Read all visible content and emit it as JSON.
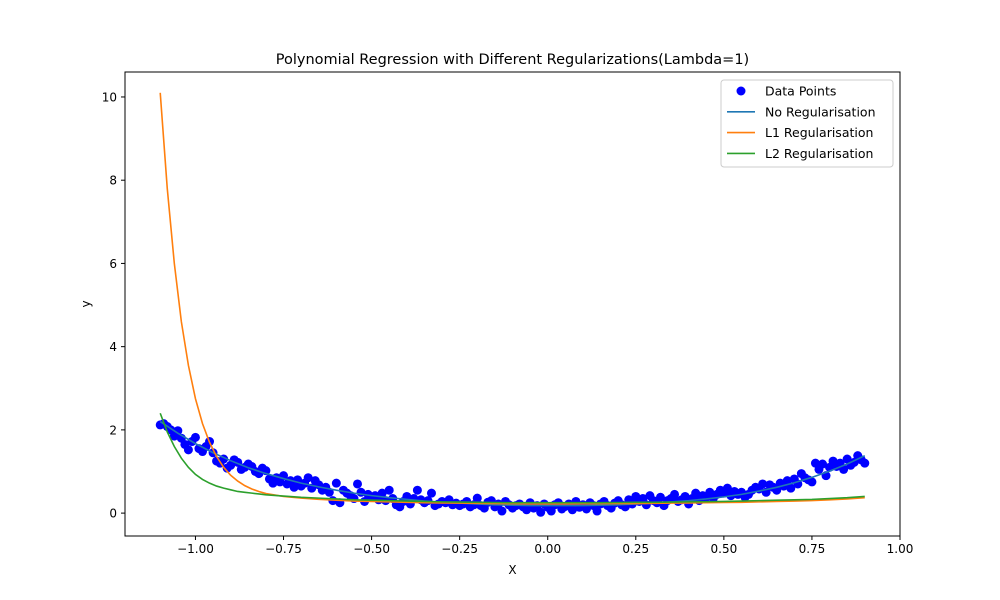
{
  "chart_data": {
    "type": "scatter",
    "title": "Polynomial Regression with Different Regularizations(Lambda=1)",
    "xlabel": "X",
    "ylabel": "y",
    "xlim": [
      -1.2,
      1.0
    ],
    "ylim": [
      -0.55,
      10.6
    ],
    "xticks": [
      -1.0,
      -0.75,
      -0.5,
      -0.25,
      0.0,
      0.25,
      0.5,
      0.75,
      1.0
    ],
    "xtick_labels": [
      "−1.00",
      "−0.75",
      "−0.50",
      "−0.25",
      "0.00",
      "0.25",
      "0.50",
      "0.75",
      "1.00"
    ],
    "yticks": [
      0,
      2,
      4,
      6,
      8,
      10
    ],
    "ytick_labels": [
      "0",
      "2",
      "4",
      "6",
      "8",
      "10"
    ],
    "grid": false,
    "legend_position": "top-right",
    "series": [
      {
        "name": "Data Points",
        "type": "scatter",
        "color": "#0000ff",
        "x": [
          -1.1,
          -1.09,
          -1.08,
          -1.07,
          -1.06,
          -1.05,
          -1.04,
          -1.03,
          -1.02,
          -1.01,
          -1.0,
          -0.99,
          -0.98,
          -0.97,
          -0.96,
          -0.95,
          -0.94,
          -0.93,
          -0.92,
          -0.91,
          -0.9,
          -0.89,
          -0.88,
          -0.87,
          -0.86,
          -0.85,
          -0.84,
          -0.83,
          -0.82,
          -0.81,
          -0.8,
          -0.79,
          -0.78,
          -0.77,
          -0.76,
          -0.75,
          -0.74,
          -0.73,
          -0.72,
          -0.71,
          -0.7,
          -0.69,
          -0.68,
          -0.67,
          -0.66,
          -0.65,
          -0.64,
          -0.63,
          -0.62,
          -0.61,
          -0.6,
          -0.59,
          -0.58,
          -0.57,
          -0.56,
          -0.55,
          -0.54,
          -0.53,
          -0.52,
          -0.51,
          -0.5,
          -0.49,
          -0.48,
          -0.47,
          -0.46,
          -0.45,
          -0.44,
          -0.43,
          -0.42,
          -0.41,
          -0.4,
          -0.39,
          -0.38,
          -0.37,
          -0.36,
          -0.35,
          -0.34,
          -0.33,
          -0.32,
          -0.31,
          -0.3,
          -0.29,
          -0.28,
          -0.27,
          -0.26,
          -0.25,
          -0.24,
          -0.23,
          -0.22,
          -0.21,
          -0.2,
          -0.19,
          -0.18,
          -0.17,
          -0.16,
          -0.15,
          -0.14,
          -0.13,
          -0.12,
          -0.11,
          -0.1,
          -0.09,
          -0.08,
          -0.07,
          -0.06,
          -0.05,
          -0.04,
          -0.03,
          -0.02,
          -0.01,
          0.0,
          0.01,
          0.02,
          0.03,
          0.04,
          0.05,
          0.06,
          0.07,
          0.08,
          0.09,
          0.1,
          0.11,
          0.12,
          0.13,
          0.14,
          0.15,
          0.16,
          0.17,
          0.18,
          0.19,
          0.2,
          0.21,
          0.22,
          0.23,
          0.24,
          0.25,
          0.26,
          0.27,
          0.28,
          0.29,
          0.3,
          0.31,
          0.32,
          0.33,
          0.34,
          0.35,
          0.36,
          0.37,
          0.38,
          0.39,
          0.4,
          0.41,
          0.42,
          0.43,
          0.44,
          0.45,
          0.46,
          0.47,
          0.48,
          0.49,
          0.5,
          0.51,
          0.52,
          0.53,
          0.54,
          0.55,
          0.56,
          0.57,
          0.58,
          0.59,
          0.6,
          0.61,
          0.62,
          0.63,
          0.64,
          0.65,
          0.66,
          0.67,
          0.68,
          0.69,
          0.7,
          0.71,
          0.72,
          0.73,
          0.74,
          0.75,
          0.76,
          0.77,
          0.78,
          0.79,
          0.8,
          0.81,
          0.82,
          0.83,
          0.84,
          0.85,
          0.86,
          0.87,
          0.88,
          0.89,
          0.9
        ],
        "y": [
          2.12,
          2.15,
          2.08,
          2.0,
          1.85,
          1.98,
          1.8,
          1.65,
          1.52,
          1.72,
          1.82,
          1.55,
          1.48,
          1.6,
          1.72,
          1.45,
          1.25,
          1.2,
          1.3,
          1.08,
          1.15,
          1.28,
          1.22,
          1.05,
          1.1,
          1.18,
          1.12,
          1.0,
          0.95,
          1.08,
          1.02,
          0.82,
          0.72,
          0.85,
          0.75,
          0.9,
          0.7,
          0.78,
          0.62,
          0.8,
          0.65,
          0.72,
          0.85,
          0.6,
          0.78,
          0.68,
          0.55,
          0.62,
          0.5,
          0.3,
          0.72,
          0.25,
          0.55,
          0.48,
          0.42,
          0.35,
          0.7,
          0.5,
          0.28,
          0.45,
          0.38,
          0.42,
          0.32,
          0.48,
          0.3,
          0.55,
          0.35,
          0.2,
          0.15,
          0.28,
          0.4,
          0.22,
          0.35,
          0.55,
          0.32,
          0.25,
          0.3,
          0.48,
          0.18,
          0.22,
          0.28,
          0.25,
          0.32,
          0.2,
          0.24,
          0.18,
          0.22,
          0.28,
          0.15,
          0.2,
          0.36,
          0.18,
          0.12,
          0.26,
          0.3,
          0.15,
          0.22,
          0.05,
          0.28,
          0.2,
          0.12,
          0.18,
          0.22,
          0.15,
          0.08,
          0.25,
          0.12,
          0.18,
          0.02,
          0.22,
          0.14,
          0.05,
          0.2,
          0.25,
          0.1,
          0.16,
          0.22,
          0.08,
          0.28,
          0.14,
          0.2,
          0.1,
          0.25,
          0.18,
          0.05,
          0.22,
          0.28,
          0.18,
          0.12,
          0.24,
          0.3,
          0.2,
          0.15,
          0.32,
          0.22,
          0.4,
          0.28,
          0.35,
          0.2,
          0.42,
          0.3,
          0.25,
          0.38,
          0.18,
          0.3,
          0.35,
          0.45,
          0.28,
          0.32,
          0.4,
          0.22,
          0.35,
          0.48,
          0.3,
          0.42,
          0.38,
          0.5,
          0.35,
          0.45,
          0.55,
          0.48,
          0.6,
          0.42,
          0.52,
          0.45,
          0.5,
          0.38,
          0.45,
          0.55,
          0.62,
          0.58,
          0.7,
          0.5,
          0.68,
          0.62,
          0.55,
          0.72,
          0.65,
          0.78,
          0.6,
          0.82,
          0.7,
          0.95,
          0.85,
          0.8,
          0.75,
          1.2,
          1.05,
          1.18,
          0.9,
          1.1,
          1.25,
          1.12,
          1.2,
          1.05,
          1.3,
          1.15,
          1.22,
          1.38,
          1.28,
          1.2
        ]
      },
      {
        "name": "No Regularisation",
        "type": "line",
        "color": "#1f77b4",
        "x": [
          -1.1,
          -1.05,
          -1.0,
          -0.95,
          -0.9,
          -0.85,
          -0.8,
          -0.75,
          -0.7,
          -0.65,
          -0.6,
          -0.55,
          -0.5,
          -0.45,
          -0.4,
          -0.35,
          -0.3,
          -0.25,
          -0.2,
          -0.15,
          -0.1,
          -0.05,
          0.0,
          0.05,
          0.1,
          0.15,
          0.2,
          0.25,
          0.3,
          0.35,
          0.4,
          0.45,
          0.5,
          0.55,
          0.6,
          0.65,
          0.7,
          0.75,
          0.8,
          0.85,
          0.9
        ],
        "y": [
          2.2,
          1.92,
          1.67,
          1.45,
          1.26,
          1.09,
          0.95,
          0.83,
          0.72,
          0.63,
          0.55,
          0.48,
          0.42,
          0.37,
          0.33,
          0.29,
          0.26,
          0.24,
          0.22,
          0.2,
          0.19,
          0.18,
          0.18,
          0.18,
          0.18,
          0.19,
          0.2,
          0.22,
          0.24,
          0.27,
          0.3,
          0.34,
          0.39,
          0.45,
          0.53,
          0.62,
          0.73,
          0.86,
          1.01,
          1.18,
          1.38
        ]
      },
      {
        "name": "L1 Regularisation",
        "type": "line",
        "color": "#ff7f0e",
        "x": [
          -1.1,
          -1.08,
          -1.06,
          -1.04,
          -1.02,
          -1.0,
          -0.98,
          -0.96,
          -0.94,
          -0.92,
          -0.9,
          -0.88,
          -0.86,
          -0.84,
          -0.82,
          -0.8,
          -0.75,
          -0.7,
          -0.65,
          -0.6,
          -0.55,
          -0.5,
          -0.45,
          -0.4,
          -0.35,
          -0.3,
          -0.25,
          -0.2,
          -0.15,
          -0.1,
          -0.05,
          0.0,
          0.05,
          0.1,
          0.15,
          0.2,
          0.25,
          0.3,
          0.35,
          0.4,
          0.45,
          0.5,
          0.55,
          0.6,
          0.65,
          0.7,
          0.75,
          0.8,
          0.85,
          0.9
        ],
        "y": [
          10.1,
          7.8,
          6.0,
          4.6,
          3.55,
          2.75,
          2.15,
          1.7,
          1.36,
          1.1,
          0.91,
          0.77,
          0.66,
          0.58,
          0.52,
          0.47,
          0.4,
          0.36,
          0.33,
          0.31,
          0.29,
          0.28,
          0.27,
          0.26,
          0.25,
          0.245,
          0.24,
          0.235,
          0.23,
          0.225,
          0.22,
          0.22,
          0.22,
          0.222,
          0.225,
          0.228,
          0.23,
          0.235,
          0.24,
          0.245,
          0.25,
          0.255,
          0.26,
          0.27,
          0.28,
          0.29,
          0.3,
          0.32,
          0.34,
          0.37
        ]
      },
      {
        "name": "L2 Regularisation",
        "type": "line",
        "color": "#2ca02c",
        "x": [
          -1.1,
          -1.08,
          -1.06,
          -1.04,
          -1.02,
          -1.0,
          -0.98,
          -0.96,
          -0.94,
          -0.92,
          -0.9,
          -0.88,
          -0.86,
          -0.84,
          -0.82,
          -0.8,
          -0.75,
          -0.7,
          -0.65,
          -0.6,
          -0.55,
          -0.5,
          -0.45,
          -0.4,
          -0.35,
          -0.3,
          -0.25,
          -0.2,
          -0.15,
          -0.1,
          -0.05,
          0.0,
          0.05,
          0.1,
          0.15,
          0.2,
          0.25,
          0.3,
          0.35,
          0.4,
          0.45,
          0.5,
          0.55,
          0.6,
          0.65,
          0.7,
          0.75,
          0.8,
          0.85,
          0.9
        ],
        "y": [
          2.4,
          1.95,
          1.6,
          1.32,
          1.1,
          0.93,
          0.81,
          0.72,
          0.65,
          0.6,
          0.56,
          0.52,
          0.5,
          0.48,
          0.46,
          0.44,
          0.41,
          0.38,
          0.36,
          0.34,
          0.32,
          0.31,
          0.3,
          0.29,
          0.28,
          0.27,
          0.265,
          0.26,
          0.255,
          0.25,
          0.25,
          0.25,
          0.25,
          0.25,
          0.25,
          0.255,
          0.26,
          0.26,
          0.265,
          0.27,
          0.275,
          0.28,
          0.29,
          0.3,
          0.31,
          0.32,
          0.33,
          0.35,
          0.37,
          0.4
        ]
      }
    ]
  }
}
